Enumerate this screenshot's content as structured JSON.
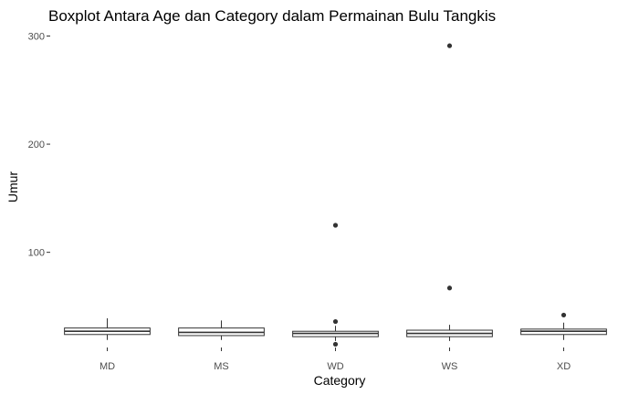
{
  "chart_data": {
    "type": "boxplot",
    "title": "Boxplot Antara Age dan Category dalam Permainan Bulu Tangkis",
    "xlabel": "Category",
    "ylabel": "Umur",
    "categories": [
      "MD",
      "MS",
      "WD",
      "WS",
      "XD"
    ],
    "ylim": [
      12,
      308
    ],
    "yticks": [
      100,
      200,
      300
    ],
    "boxes": [
      {
        "category": "MD",
        "min": 19,
        "q1": 24,
        "median": 27,
        "q3": 30,
        "max": 39,
        "outliers": []
      },
      {
        "category": "MS",
        "min": 19,
        "q1": 23,
        "median": 26,
        "q3": 30,
        "max": 37,
        "outliers": []
      },
      {
        "category": "WD",
        "min": 18,
        "q1": 22,
        "median": 25,
        "q3": 27,
        "max": 32,
        "outliers": [
          15,
          36,
          125
        ]
      },
      {
        "category": "WS",
        "min": 18,
        "q1": 22,
        "median": 25,
        "q3": 28,
        "max": 33,
        "outliers": [
          67,
          291
        ]
      },
      {
        "category": "XD",
        "min": 19,
        "q1": 24,
        "median": 27,
        "q3": 29,
        "max": 35,
        "outliers": [
          42
        ]
      }
    ],
    "grid": false,
    "legend": "none"
  }
}
